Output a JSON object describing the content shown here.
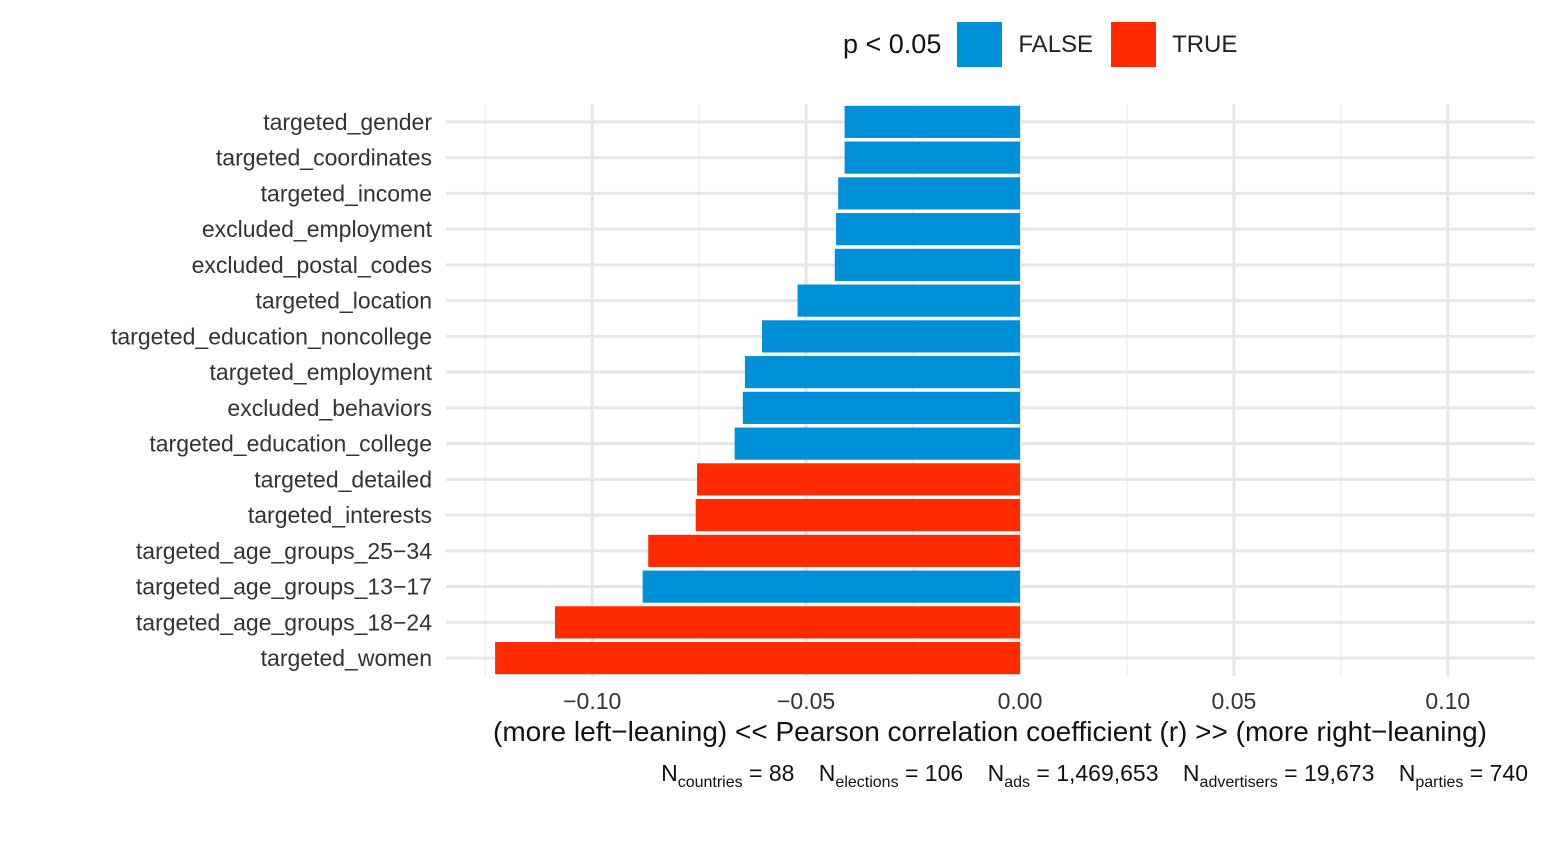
{
  "legend": {
    "title": "p < 0.05",
    "items": [
      {
        "label": "FALSE",
        "color": "#0090D8"
      },
      {
        "label": "TRUE",
        "color": "#FF2A00"
      }
    ]
  },
  "caption": [
    {
      "base": "N",
      "sub": "countries",
      "value": " = 88"
    },
    {
      "base": "N",
      "sub": "elections",
      "value": " = 106"
    },
    {
      "base": "N",
      "sub": "ads",
      "value": " = 1,469,653"
    },
    {
      "base": "N",
      "sub": "advertisers",
      "value": " = 19,673"
    },
    {
      "base": "N",
      "sub": "parties",
      "value": " = 740"
    }
  ],
  "chart_data": {
    "type": "bar",
    "orientation": "horizontal",
    "xlabel": "(more left−leaning) << Pearson correlation coefficient (r) >> (more right−leaning)",
    "ylabel": "",
    "xlim": [
      -0.125,
      0.12
    ],
    "xticks": [
      -0.1,
      -0.05,
      0.0,
      0.05,
      0.1
    ],
    "xtick_labels": [
      "−0.10",
      "−0.05",
      "0.00",
      "0.05",
      "0.10"
    ],
    "grid": true,
    "legend_position": "top",
    "categories": [
      "targeted_gender",
      "targeted_coordinates",
      "targeted_income",
      "excluded_employment",
      "excluded_postal_codes",
      "targeted_location",
      "targeted_education_noncollege",
      "targeted_employment",
      "excluded_behaviors",
      "targeted_education_college",
      "targeted_detailed",
      "targeted_interests",
      "targeted_age_groups_25−34",
      "targeted_age_groups_13−17",
      "targeted_age_groups_18−24",
      "targeted_women"
    ],
    "values": [
      -0.041,
      -0.041,
      -0.0425,
      -0.043,
      -0.0433,
      -0.052,
      -0.0603,
      -0.0643,
      -0.0648,
      -0.0667,
      -0.0755,
      -0.0758,
      -0.0869,
      -0.0882,
      -0.1087,
      -0.1227
    ],
    "significant": [
      false,
      false,
      false,
      false,
      false,
      false,
      false,
      false,
      false,
      false,
      true,
      true,
      true,
      false,
      true,
      true
    ]
  }
}
